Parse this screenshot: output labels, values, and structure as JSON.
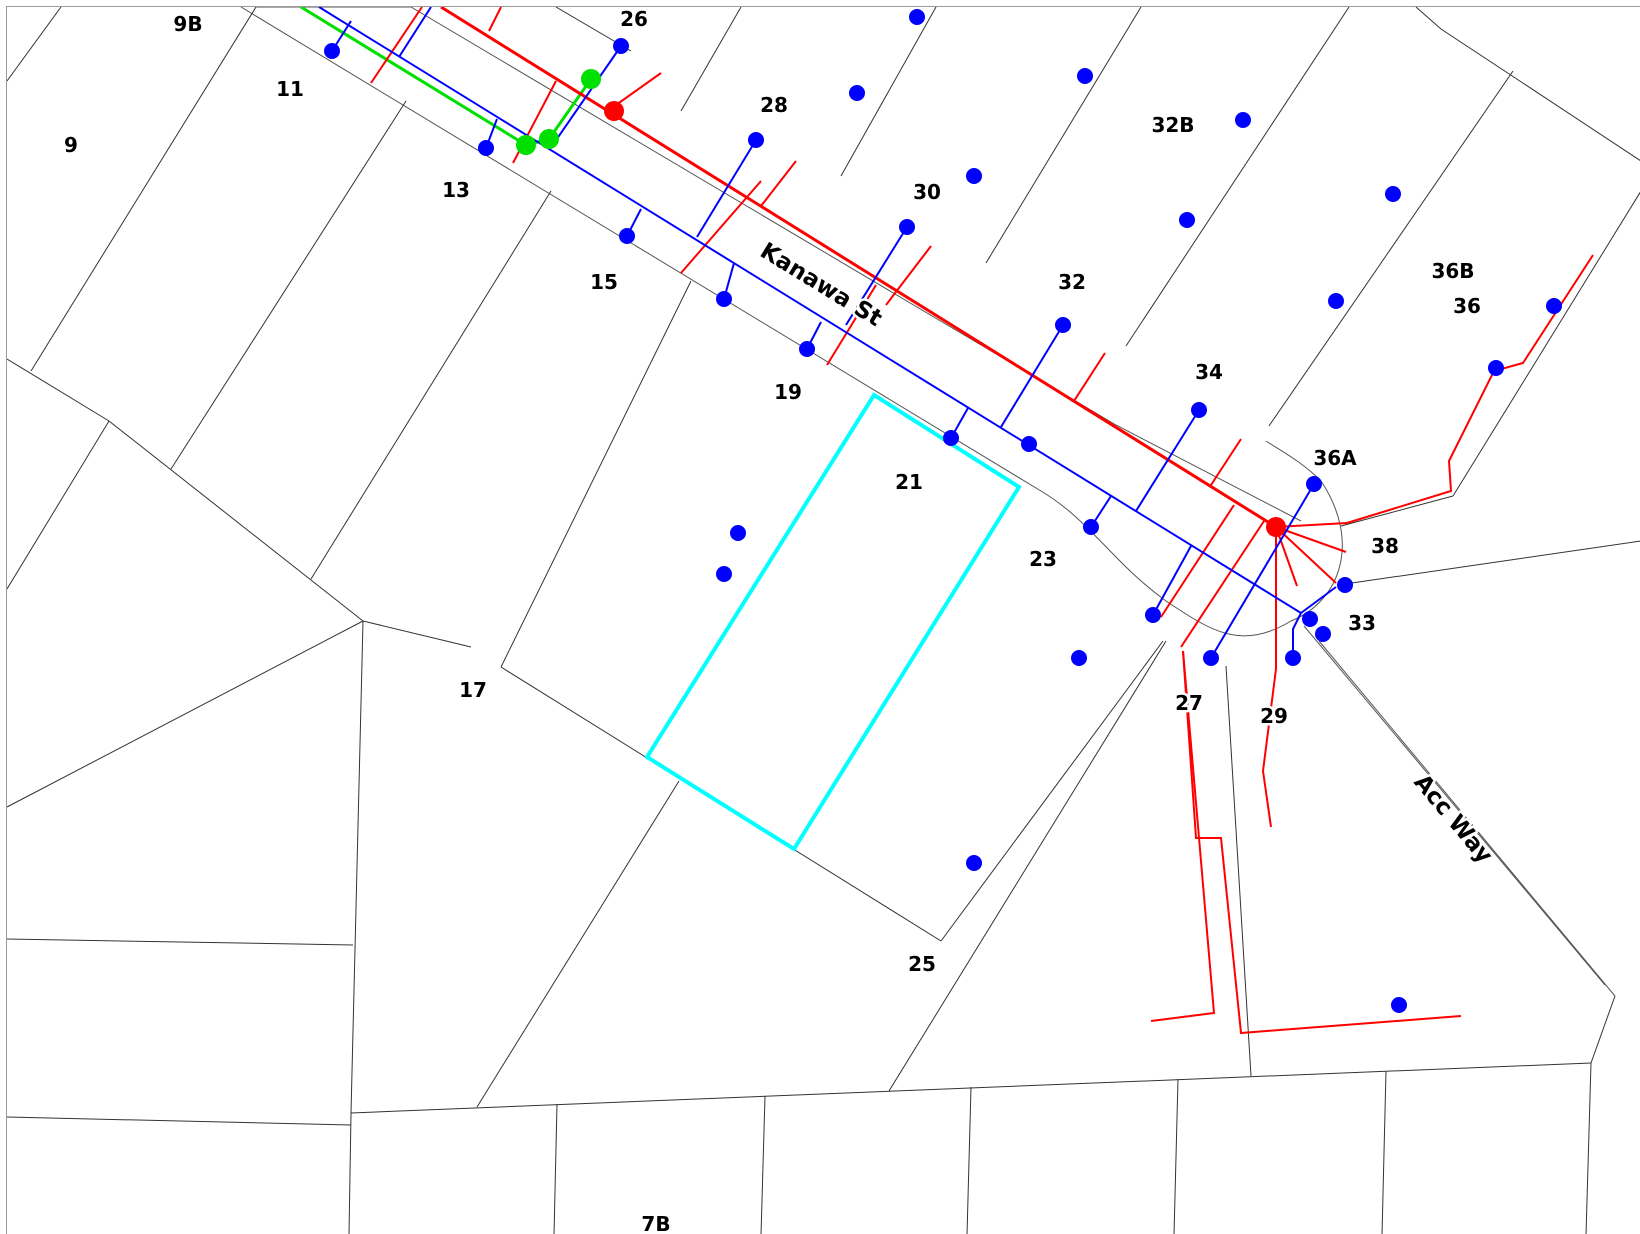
{
  "map": {
    "highlight_color": "#00ffff",
    "layers": {
      "water": {
        "color": "#0000ff",
        "name": "water"
      },
      "wastewater": {
        "color": "#ff0000",
        "name": "wastewater"
      },
      "stormwater": {
        "color": "#00e000",
        "name": "stormwater"
      }
    },
    "streets": {
      "kanawa": "Kanawa St",
      "accway": "Acc Way"
    },
    "lots": {
      "l9b": "9B",
      "l9": "9",
      "l11": "11",
      "l13": "13",
      "l15": "15",
      "l17": "17",
      "l19": "19",
      "l21": "21",
      "l23": "23",
      "l25": "25",
      "l26": "26",
      "l27": "27",
      "l28": "28",
      "l29": "29",
      "l30": "30",
      "l32": "32",
      "l32b": "32B",
      "l33": "33",
      "l34": "34",
      "l36": "36",
      "l36a": "36A",
      "l36b": "36B",
      "l38": "38",
      "l7b": "7B"
    }
  }
}
